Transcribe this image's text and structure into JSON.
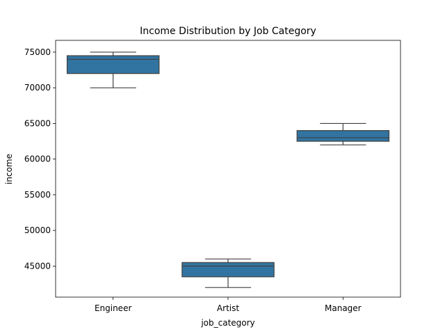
{
  "chart_data": {
    "type": "box",
    "title": "Income Distribution by Job Category",
    "xlabel": "job_category",
    "ylabel": "income",
    "categories": [
      "Engineer",
      "Artist",
      "Manager"
    ],
    "boxes": [
      {
        "category": "Engineer",
        "whisker_low": 70000,
        "q1": 72000,
        "median": 74000,
        "q3": 74500,
        "whisker_high": 75000
      },
      {
        "category": "Artist",
        "whisker_low": 42000,
        "q1": 43500,
        "median": 45000,
        "q3": 45500,
        "whisker_high": 46000
      },
      {
        "category": "Manager",
        "whisker_low": 62000,
        "q1": 62500,
        "median": 63000,
        "q3": 64000,
        "whisker_high": 65000
      }
    ],
    "ylim": [
      40650,
      76650
    ],
    "yticks": [
      45000,
      50000,
      55000,
      60000,
      65000,
      70000,
      75000
    ],
    "ytick_labels": [
      "45000",
      "50000",
      "55000",
      "60000",
      "65000",
      "70000",
      "75000"
    ],
    "grid": false,
    "box_color": "#3274a1",
    "line_color": "#3f3f3f"
  }
}
